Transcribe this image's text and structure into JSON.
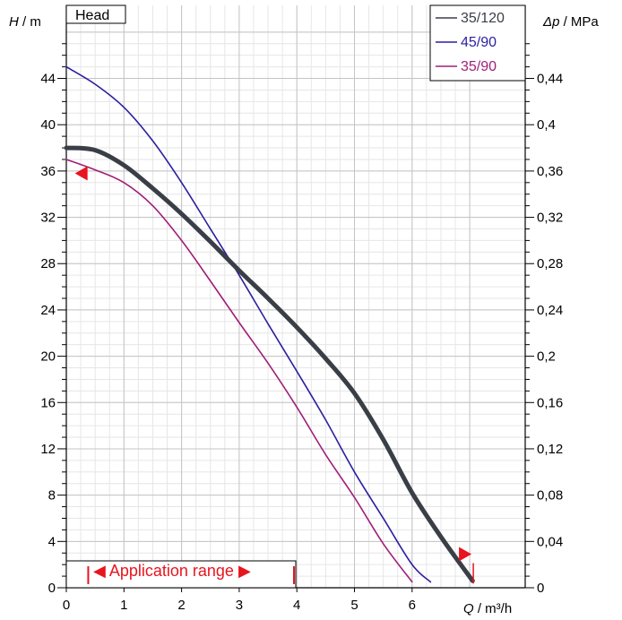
{
  "chart_data": {
    "type": "line",
    "title": "Head",
    "xlabel_var": "Q",
    "xlabel_unit": " / m³/h",
    "ylabel_var": "H",
    "ylabel_unit": " / m",
    "y2label_var": "Δp",
    "y2label_unit": " / MPa",
    "xlim": [
      0,
      7
    ],
    "ylim": [
      0,
      48
    ],
    "xticks": [
      "0",
      "1",
      "2",
      "3",
      "4",
      "5",
      "6"
    ],
    "yticks": [
      "0",
      "4",
      "8",
      "12",
      "16",
      "20",
      "24",
      "28",
      "32",
      "36",
      "40",
      "44"
    ],
    "y2ticks": [
      "0",
      "0,04",
      "0,08",
      "0,12",
      "0,16",
      "0,2",
      "0,24",
      "0,28",
      "0,32",
      "0,36",
      "0,4",
      "0,44"
    ],
    "grid": true,
    "legend_position": "top-right",
    "series": [
      {
        "name": "35/120",
        "color": "#3a3f47",
        "x": [
          0,
          0.5,
          1.0,
          1.5,
          2.0,
          2.5,
          3.0,
          3.5,
          4.0,
          4.5,
          5.0,
          5.5,
          6.0,
          6.5,
          7.05
        ],
        "y": [
          38,
          37.8,
          36.5,
          34.5,
          32.3,
          29.9,
          27.4,
          25.0,
          22.5,
          19.8,
          16.8,
          12.8,
          8.2,
          4.4,
          0.6
        ]
      },
      {
        "name": "45/90",
        "color": "#2a1fa0",
        "x": [
          0,
          0.5,
          1.0,
          1.5,
          2.0,
          2.5,
          3.0,
          3.5,
          4.0,
          4.5,
          5.0,
          5.5,
          6.0,
          6.32
        ],
        "y": [
          45,
          43.5,
          41.5,
          38.6,
          35.0,
          31.0,
          27.0,
          22.8,
          18.7,
          14.5,
          10.0,
          6.0,
          2.0,
          0.5
        ]
      },
      {
        "name": "35/90",
        "color": "#a01e78",
        "x": [
          0,
          0.5,
          1.0,
          1.5,
          2.0,
          2.5,
          3.0,
          3.5,
          4.0,
          4.5,
          5.0,
          5.5,
          6.0
        ],
        "y": [
          37,
          36.1,
          35.0,
          33.0,
          30.0,
          26.5,
          22.9,
          19.4,
          15.6,
          11.5,
          7.8,
          3.8,
          0.5
        ]
      }
    ],
    "application_range": {
      "label": "◀ Application range ▶",
      "x_start": 0.38,
      "x_end": 3.95,
      "color": "#e8141e"
    },
    "markers": [
      {
        "type": "triangle-left",
        "x": 0.15,
        "y": 35.8,
        "color": "#e8141e"
      },
      {
        "type": "triangle-right",
        "x": 7.0,
        "y": 2.9,
        "color": "#e8141e"
      }
    ]
  }
}
